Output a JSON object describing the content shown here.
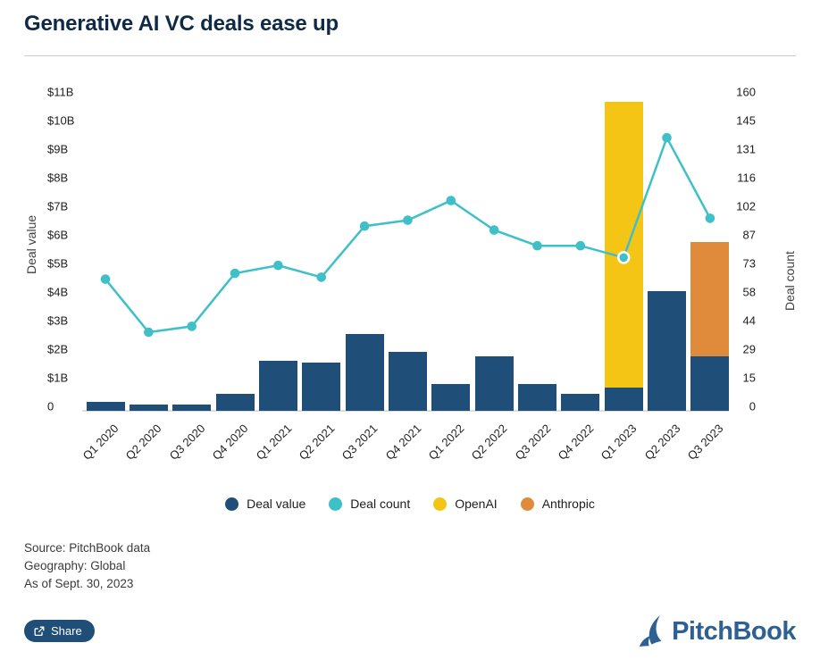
{
  "header": {
    "title": "Generative AI VC deals ease up"
  },
  "chart_data": {
    "type": "bar",
    "subtype": "stacked-bar-with-line",
    "categories": [
      "Q1 2020",
      "Q2 2020",
      "Q3 2020",
      "Q4 2020",
      "Q1 2021",
      "Q2 2021",
      "Q3 2021",
      "Q4 2021",
      "Q1 2022",
      "Q2 2022",
      "Q3 2022",
      "Q4 2022",
      "Q1 2023",
      "Q2 2023",
      "Q3 2023"
    ],
    "series": [
      {
        "name": "Deal value",
        "type": "bar",
        "axis": "left",
        "unit": "$B",
        "color": "#1f4e79",
        "values": [
          0.3,
          0.22,
          0.22,
          0.6,
          1.75,
          1.7,
          2.7,
          2.05,
          0.95,
          1.9,
          0.95,
          0.6,
          0.8,
          4.2,
          1.9
        ]
      },
      {
        "name": "OpenAI",
        "type": "bar-stacked",
        "axis": "left",
        "unit": "$B",
        "color": "#f5c516",
        "values": [
          0,
          0,
          0,
          0,
          0,
          0,
          0,
          0,
          0,
          0,
          0,
          0,
          10.0,
          0,
          0
        ]
      },
      {
        "name": "Anthropic",
        "type": "bar-stacked",
        "axis": "left",
        "unit": "$B",
        "color": "#e08b3b",
        "values": [
          0,
          0,
          0,
          0,
          0,
          0,
          0,
          0,
          0,
          0,
          0,
          0,
          0,
          0,
          4.0
        ]
      },
      {
        "name": "Deal count",
        "type": "line",
        "axis": "right",
        "color": "#3fc0c9",
        "values": [
          67,
          40,
          43,
          70,
          74,
          68,
          94,
          97,
          107,
          92,
          84,
          84,
          78,
          139,
          98
        ],
        "highlighted_category": "Q1 2023"
      }
    ],
    "left_axis": {
      "title": "Deal value",
      "ticks": [
        "0",
        "$1B",
        "$2B",
        "$3B",
        "$4B",
        "$5B",
        "$6B",
        "$7B",
        "$8B",
        "$9B",
        "$10B",
        "$11B"
      ],
      "range_B": [
        0,
        11
      ]
    },
    "right_axis": {
      "title": "Deal count",
      "ticks": [
        "0",
        "15",
        "29",
        "44",
        "58",
        "73",
        "87",
        "102",
        "116",
        "131",
        "145",
        "160"
      ],
      "range": [
        0,
        160
      ]
    },
    "grid": "off",
    "legend_position": "bottom"
  },
  "legend": {
    "items": [
      {
        "label": "Deal value",
        "color": "#1f4e79"
      },
      {
        "label": "Deal count",
        "color": "#3fc0c9"
      },
      {
        "label": "OpenAI",
        "color": "#f5c516"
      },
      {
        "label": "Anthropic",
        "color": "#e08b3b"
      }
    ]
  },
  "source": {
    "source_line": "Source: PitchBook data",
    "geography_line": "Geography: Global",
    "as_of_line": "As of Sept. 30, 2023"
  },
  "footer": {
    "share_label": "Share",
    "brand_name": "PitchBook",
    "brand_color": "#2d6093"
  }
}
